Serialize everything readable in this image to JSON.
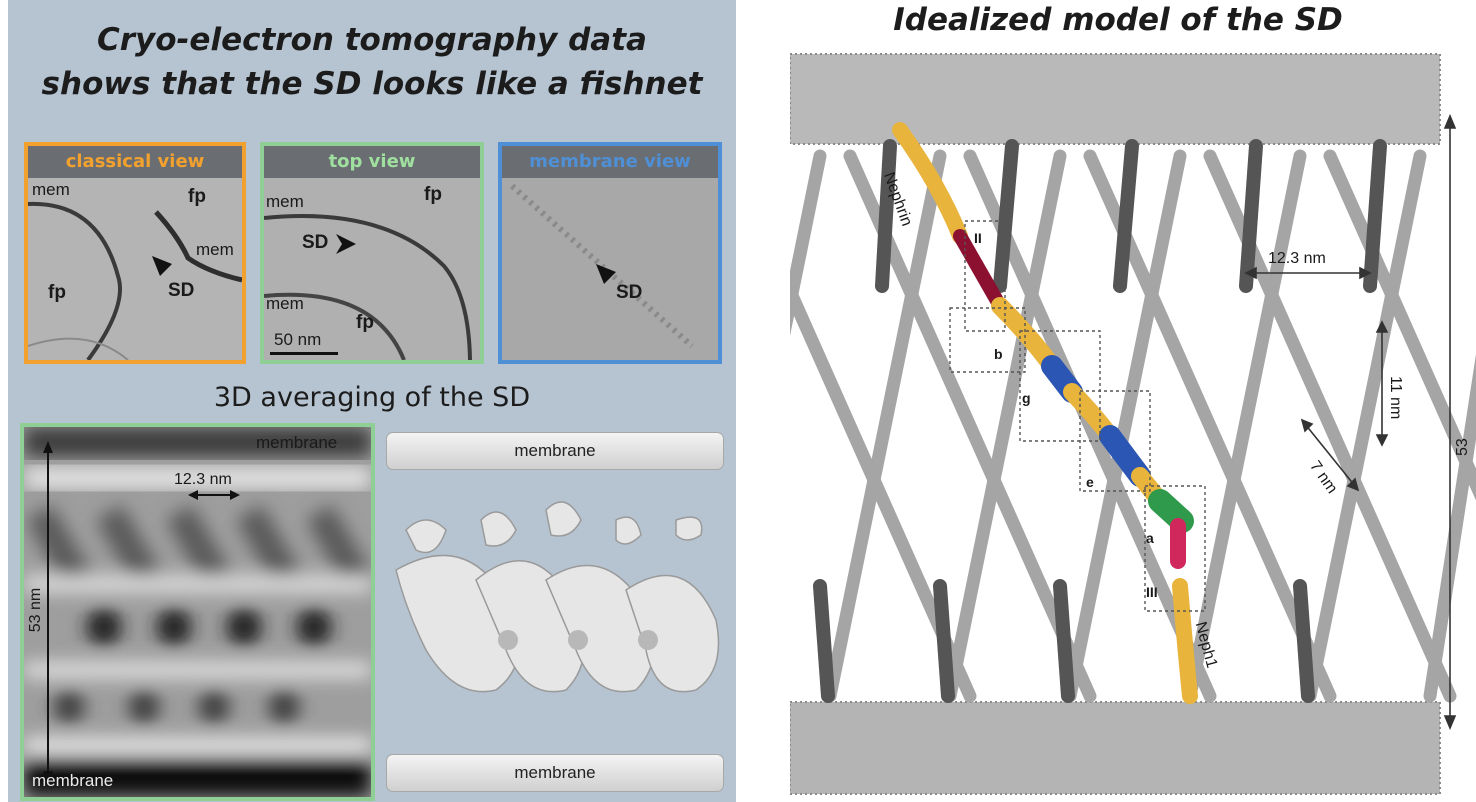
{
  "left_panel": {
    "headline_line1": "Cryo-electron tomography data",
    "headline_line2": "shows that the SD looks like a fishnet",
    "views": {
      "classical": {
        "title": "classical view",
        "border_color": "#f2a12e",
        "title_color": "#f2a12e",
        "labels": {
          "mem": "mem",
          "fp_top": "fp",
          "mem_right": "mem",
          "fp_left": "fp",
          "sd": "SD"
        }
      },
      "top": {
        "title": "top view",
        "border_color": "#8fcf96",
        "title_color": "#9fe09f",
        "labels": {
          "mem_top": "mem",
          "fp_top": "fp",
          "sd": "SD",
          "mem_bottom": "mem",
          "fp_bottom": "fp",
          "scale": "50 nm"
        }
      },
      "membrane": {
        "title": "membrane view",
        "border_color": "#4f8fd6",
        "title_color": "#4f8fd6",
        "labels": {
          "sd": "SD"
        }
      }
    },
    "section_title": "3D averaging of the SD",
    "average": {
      "membrane_top": "membrane",
      "membrane_bottom": "membrane",
      "spacing": "12.3 nm",
      "height": "53 nm"
    },
    "render": {
      "membrane_top": "membrane",
      "membrane_bottom": "membrane"
    }
  },
  "right_panel": {
    "title": "Idealized model of the SD",
    "labels": {
      "nephrin": "Nephrin",
      "neph1": "Neph1",
      "ii": "II",
      "iii": "III",
      "b": "b",
      "g": "g",
      "e": "e",
      "a": "a",
      "spacing": "12.3 nm",
      "vertical": "11 nm",
      "diagonal": "7 nm",
      "height": "53 nm"
    },
    "colors": {
      "strand": "#9a9a9a",
      "strand_dark": "#555555",
      "nephrin": "#e8b43c",
      "crimson": "#8c1030",
      "blue": "#2b56b3",
      "green": "#2f9a4b",
      "pink": "#d0285c"
    }
  }
}
